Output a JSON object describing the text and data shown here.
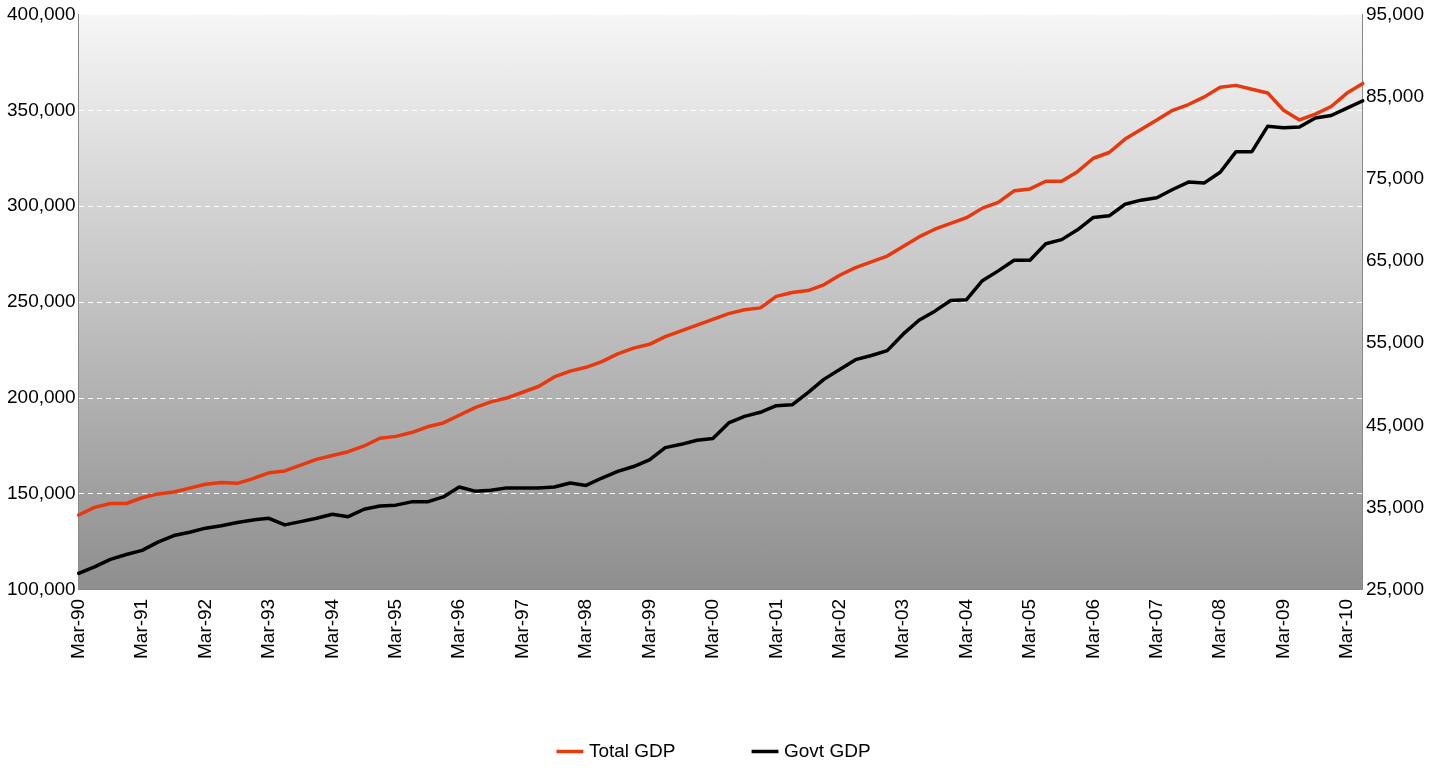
{
  "chart_data": {
    "type": "line",
    "categories": [
      "Mar-90",
      null,
      null,
      null,
      "Mar-91",
      null,
      null,
      null,
      "Mar-92",
      null,
      null,
      null,
      "Mar-93",
      null,
      null,
      null,
      "Mar-94",
      null,
      null,
      null,
      "Mar-95",
      null,
      null,
      null,
      "Mar-96",
      null,
      null,
      null,
      "Mar-97",
      null,
      null,
      null,
      "Mar-98",
      null,
      null,
      null,
      "Mar-99",
      null,
      null,
      null,
      "Mar-00",
      null,
      null,
      null,
      "Mar-01",
      null,
      null,
      null,
      "Mar-02",
      null,
      null,
      null,
      "Mar-03",
      null,
      null,
      null,
      "Mar-04",
      null,
      null,
      null,
      "Mar-05",
      null,
      null,
      null,
      "Mar-06",
      null,
      null,
      null,
      "Mar-07",
      null,
      null,
      null,
      "Mar-08",
      null,
      null,
      null,
      "Mar-09",
      null,
      null,
      null,
      "Mar-10",
      null
    ],
    "series": [
      {
        "name": "Total GDP",
        "color": "#e8380d",
        "values": [
          139000,
          143000,
          145000,
          145000,
          148000,
          150000,
          151000,
          153000,
          155000,
          156000,
          155500,
          158000,
          161000,
          162000,
          165000,
          168000,
          170000,
          172000,
          175000,
          179000,
          180000,
          182000,
          185000,
          187000,
          191000,
          195000,
          198000,
          200000,
          203000,
          206000,
          211000,
          214000,
          216000,
          219000,
          223000,
          226000,
          228000,
          232000,
          235000,
          238000,
          241000,
          244000,
          246000,
          247000,
          253000,
          255000,
          256000,
          259000,
          264000,
          268000,
          271000,
          274000,
          279000,
          284000,
          288000,
          291000,
          294000,
          299000,
          302000,
          308000,
          309000,
          313000,
          313000,
          318000,
          325000,
          328000,
          335000,
          340000,
          345000,
          350000,
          353000,
          357000,
          362000,
          363000,
          361000,
          359000,
          350000,
          345000,
          348000,
          352000,
          359000,
          364000
        ]
      },
      {
        "name": "Govt GDP",
        "color": "#000000",
        "axis": "y2",
        "values": [
          27000,
          27800,
          28700,
          29300,
          29800,
          30800,
          31600,
          32000,
          32500,
          32800,
          33200,
          33500,
          33700,
          32900,
          33300,
          33700,
          34200,
          33900,
          34800,
          35200,
          35300,
          35700,
          35700,
          36300,
          37500,
          37000,
          37100,
          37400,
          37400,
          37400,
          37500,
          38000,
          37700,
          38600,
          39400,
          40000,
          40800,
          42300,
          42700,
          43200,
          43400,
          45300,
          46100,
          46600,
          47400,
          47500,
          49000,
          50600,
          51800,
          53000,
          53500,
          54100,
          56100,
          57800,
          58900,
          60200,
          60300,
          62600,
          63800,
          65100,
          65100,
          67100,
          67600,
          68800,
          70300,
          70500,
          71900,
          72400,
          72700,
          73700,
          74600,
          74500,
          75800,
          78300,
          78300,
          81400,
          81200,
          81300,
          82400,
          82700,
          83600,
          84500
        ]
      }
    ],
    "ylim": [
      100000,
      400000
    ],
    "yticks": [
      {
        "value": 100000,
        "label": "100,000"
      },
      {
        "value": 150000,
        "label": "150,000"
      },
      {
        "value": 200000,
        "label": "200,000"
      },
      {
        "value": 250000,
        "label": "250,000"
      },
      {
        "value": 300000,
        "label": "300,000"
      },
      {
        "value": 350000,
        "label": "350,000"
      },
      {
        "value": 400000,
        "label": "400,000"
      }
    ],
    "y2lim": [
      25000,
      95000
    ],
    "y2ticks": [
      {
        "value": 25000,
        "label": "25,000"
      },
      {
        "value": 35000,
        "label": "35,000"
      },
      {
        "value": 45000,
        "label": "45,000"
      },
      {
        "value": 55000,
        "label": "55,000"
      },
      {
        "value": 65000,
        "label": "65,000"
      },
      {
        "value": 75000,
        "label": "75,000"
      },
      {
        "value": 85000,
        "label": "85,000"
      },
      {
        "value": 95000,
        "label": "95,000"
      }
    ],
    "grid": "y",
    "legend": "bottom",
    "marker": "none",
    "line_style": "solid"
  }
}
